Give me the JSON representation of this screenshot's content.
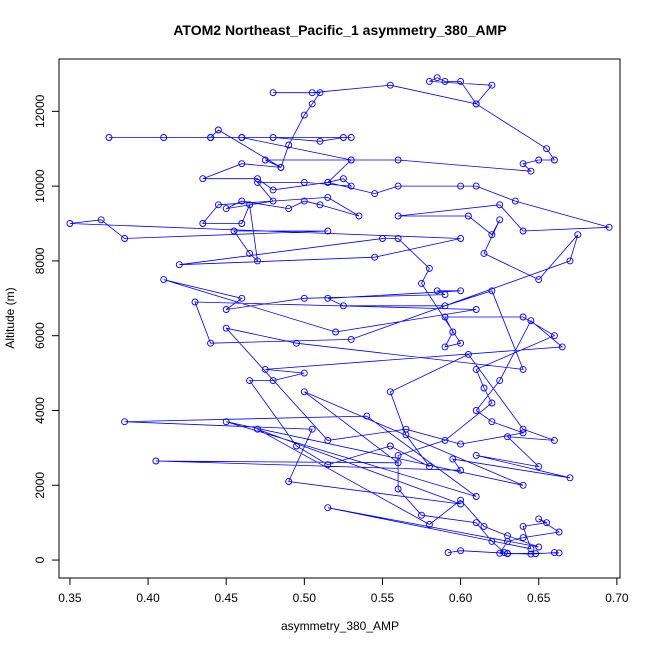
{
  "chart_data": {
    "type": "line",
    "title": "ATOM2 Northeast_Pacific_1 asymmetry_380_AMP",
    "xlabel": "asymmetry_380_AMP",
    "ylabel": "Altitude (m)",
    "xlim": [
      0.343,
      0.702
    ],
    "ylim": [
      -480,
      13400
    ],
    "x_ticks": [
      0.35,
      0.4,
      0.45,
      0.5,
      0.55,
      0.6,
      0.65,
      0.7
    ],
    "x_tick_labels": [
      "0.35",
      "0.40",
      "0.45",
      "0.50",
      "0.55",
      "0.60",
      "0.65",
      "0.70"
    ],
    "y_ticks": [
      0,
      2000,
      4000,
      6000,
      8000,
      10000,
      12000
    ],
    "y_tick_labels": [
      "0",
      "2000",
      "4000",
      "6000",
      "8000",
      "10000",
      "12000"
    ],
    "grid": false,
    "series_color": "#0000ff",
    "marker": "open-circle",
    "series": [
      {
        "points": [
          [
            0.592,
            200
          ],
          [
            0.6,
            250
          ],
          [
            0.63,
            180
          ],
          [
            0.645,
            160
          ],
          [
            0.66,
            200
          ],
          [
            0.663,
            190
          ],
          [
            0.63,
            170
          ],
          [
            0.648,
            170
          ],
          [
            0.625,
            180
          ],
          [
            0.63,
            500
          ],
          [
            0.64,
            600
          ],
          [
            0.663,
            750
          ],
          [
            0.65,
            1100
          ],
          [
            0.655,
            1000
          ],
          [
            0.64,
            900
          ],
          [
            0.645,
            300
          ],
          [
            0.515,
            1400
          ],
          [
            0.65,
            350
          ],
          [
            0.63,
            650
          ],
          [
            0.615,
            900
          ],
          [
            0.6,
            1600
          ],
          [
            0.58,
            950
          ],
          [
            0.47,
            3500
          ],
          [
            0.6,
            1500
          ],
          [
            0.49,
            2100
          ],
          [
            0.505,
            3500
          ],
          [
            0.385,
            3700
          ],
          [
            0.54,
            3850
          ],
          [
            0.61,
            1700
          ],
          [
            0.45,
            3700
          ],
          [
            0.64,
            2000
          ],
          [
            0.5,
            4500
          ],
          [
            0.56,
            2600
          ],
          [
            0.405,
            2650
          ],
          [
            0.6,
            2400
          ],
          [
            0.595,
            2700
          ],
          [
            0.67,
            2200
          ],
          [
            0.61,
            2800
          ],
          [
            0.65,
            2500
          ],
          [
            0.63,
            3300
          ],
          [
            0.66,
            3200
          ],
          [
            0.64,
            3500
          ],
          [
            0.605,
            5500
          ],
          [
            0.555,
            4500
          ],
          [
            0.565,
            3350
          ],
          [
            0.58,
            2500
          ],
          [
            0.555,
            3050
          ],
          [
            0.515,
            2550
          ],
          [
            0.495,
            3050
          ],
          [
            0.465,
            4800
          ],
          [
            0.48,
            4800
          ],
          [
            0.5,
            5000
          ],
          [
            0.475,
            5100
          ],
          [
            0.665,
            5700
          ],
          [
            0.645,
            6400
          ],
          [
            0.625,
            4800
          ],
          [
            0.61,
            4000
          ],
          [
            0.62,
            3700
          ],
          [
            0.64,
            3400
          ],
          [
            0.6,
            3100
          ],
          [
            0.565,
            3500
          ],
          [
            0.515,
            3200
          ],
          [
            0.45,
            6200
          ],
          [
            0.495,
            5800
          ],
          [
            0.64,
            5100
          ],
          [
            0.62,
            7200
          ],
          [
            0.59,
            6800
          ],
          [
            0.525,
            6800
          ],
          [
            0.515,
            7000
          ],
          [
            0.6,
            7200
          ],
          [
            0.585,
            7200
          ],
          [
            0.59,
            7100
          ],
          [
            0.5,
            7000
          ],
          [
            0.45,
            6700
          ],
          [
            0.46,
            7000
          ],
          [
            0.41,
            7500
          ],
          [
            0.52,
            6100
          ],
          [
            0.61,
            6700
          ],
          [
            0.43,
            6900
          ],
          [
            0.44,
            5800
          ],
          [
            0.53,
            5900
          ],
          [
            0.67,
            8000
          ],
          [
            0.675,
            8700
          ],
          [
            0.65,
            7500
          ],
          [
            0.615,
            8200
          ],
          [
            0.625,
            9100
          ],
          [
            0.62,
            8700
          ],
          [
            0.605,
            9200
          ],
          [
            0.56,
            9200
          ],
          [
            0.625,
            9500
          ],
          [
            0.64,
            8800
          ],
          [
            0.695,
            8900
          ],
          [
            0.635,
            9600
          ],
          [
            0.61,
            10000
          ],
          [
            0.6,
            10000
          ],
          [
            0.56,
            10000
          ],
          [
            0.545,
            9800
          ],
          [
            0.515,
            10100
          ],
          [
            0.48,
            9900
          ],
          [
            0.47,
            10200
          ],
          [
            0.435,
            10200
          ],
          [
            0.46,
            10600
          ],
          [
            0.485,
            10500
          ],
          [
            0.475,
            10700
          ],
          [
            0.56,
            10700
          ],
          [
            0.645,
            10400
          ],
          [
            0.64,
            10600
          ],
          [
            0.65,
            10700
          ],
          [
            0.66,
            10700
          ],
          [
            0.655,
            11000
          ],
          [
            0.61,
            12200
          ],
          [
            0.62,
            12700
          ],
          [
            0.58,
            12800
          ],
          [
            0.585,
            12900
          ],
          [
            0.59,
            12800
          ],
          [
            0.6,
            12800
          ],
          [
            0.61,
            12200
          ],
          [
            0.555,
            12700
          ],
          [
            0.505,
            12500
          ],
          [
            0.48,
            12500
          ],
          [
            0.51,
            12500
          ],
          [
            0.505,
            12200
          ],
          [
            0.5,
            11900
          ],
          [
            0.49,
            11100
          ],
          [
            0.485,
            10500
          ],
          [
            0.445,
            11500
          ],
          [
            0.44,
            11300
          ],
          [
            0.41,
            11300
          ],
          [
            0.375,
            11300
          ],
          [
            0.53,
            11300
          ],
          [
            0.525,
            11300
          ],
          [
            0.51,
            11200
          ],
          [
            0.48,
            11300
          ],
          [
            0.46,
            11300
          ],
          [
            0.44,
            11300
          ],
          [
            0.46,
            11300
          ],
          [
            0.53,
            10700
          ],
          [
            0.515,
            10100
          ],
          [
            0.525,
            10200
          ],
          [
            0.53,
            10000
          ],
          [
            0.5,
            10100
          ],
          [
            0.47,
            10100
          ],
          [
            0.48,
            9600
          ],
          [
            0.45,
            9400
          ],
          [
            0.46,
            9600
          ],
          [
            0.49,
            9400
          ],
          [
            0.5,
            9600
          ],
          [
            0.51,
            9500
          ],
          [
            0.535,
            9200
          ],
          [
            0.515,
            9700
          ],
          [
            0.445,
            9500
          ],
          [
            0.435,
            9000
          ],
          [
            0.46,
            9000
          ],
          [
            0.465,
            9500
          ],
          [
            0.47,
            8000
          ],
          [
            0.465,
            8200
          ],
          [
            0.455,
            8800
          ],
          [
            0.515,
            8800
          ],
          [
            0.385,
            8600
          ],
          [
            0.37,
            9100
          ],
          [
            0.35,
            9000
          ],
          [
            0.6,
            8600
          ],
          [
            0.545,
            8100
          ],
          [
            0.42,
            7900
          ],
          [
            0.55,
            8600
          ],
          [
            0.56,
            8600
          ],
          [
            0.58,
            7800
          ],
          [
            0.575,
            7400
          ],
          [
            0.6,
            5800
          ],
          [
            0.59,
            5700
          ],
          [
            0.595,
            6100
          ],
          [
            0.59,
            6500
          ],
          [
            0.64,
            6500
          ],
          [
            0.66,
            6000
          ],
          [
            0.61,
            5100
          ],
          [
            0.615,
            4600
          ],
          [
            0.62,
            4200
          ],
          [
            0.59,
            3200
          ],
          [
            0.56,
            2800
          ],
          [
            0.56,
            1900
          ],
          [
            0.575,
            1200
          ],
          [
            0.61,
            1000
          ],
          [
            0.62,
            500
          ],
          [
            0.628,
            200
          ]
        ]
      }
    ]
  }
}
